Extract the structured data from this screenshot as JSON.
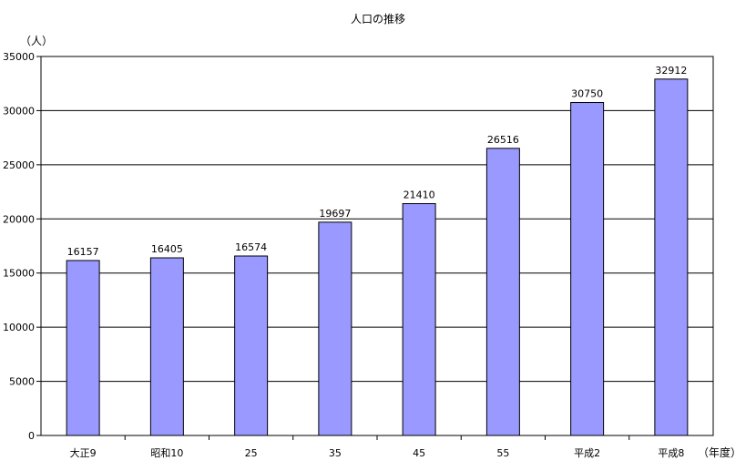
{
  "chart_data": {
    "type": "bar",
    "title": "人口の推移",
    "ylabel": "（人）",
    "xlabel": "（年度）",
    "categories": [
      "大正9",
      "昭和10",
      "25",
      "35",
      "45",
      "55",
      "平成2",
      "平成8"
    ],
    "values": [
      16157,
      16405,
      16574,
      19697,
      21410,
      26516,
      30750,
      32912
    ],
    "data_labels": [
      "16157",
      "16405",
      "16574",
      "19697",
      "21410",
      "26516",
      "30750",
      "32912"
    ],
    "ylim": [
      0,
      35000
    ],
    "yticks": [
      0,
      5000,
      10000,
      15000,
      20000,
      25000,
      30000,
      35000
    ],
    "ytick_labels": [
      "0",
      "5000",
      "10000",
      "15000",
      "20000",
      "25000",
      "30000",
      "35000"
    ],
    "grid": "horizontal",
    "legend": "none",
    "bar_color": "#9999ff"
  }
}
